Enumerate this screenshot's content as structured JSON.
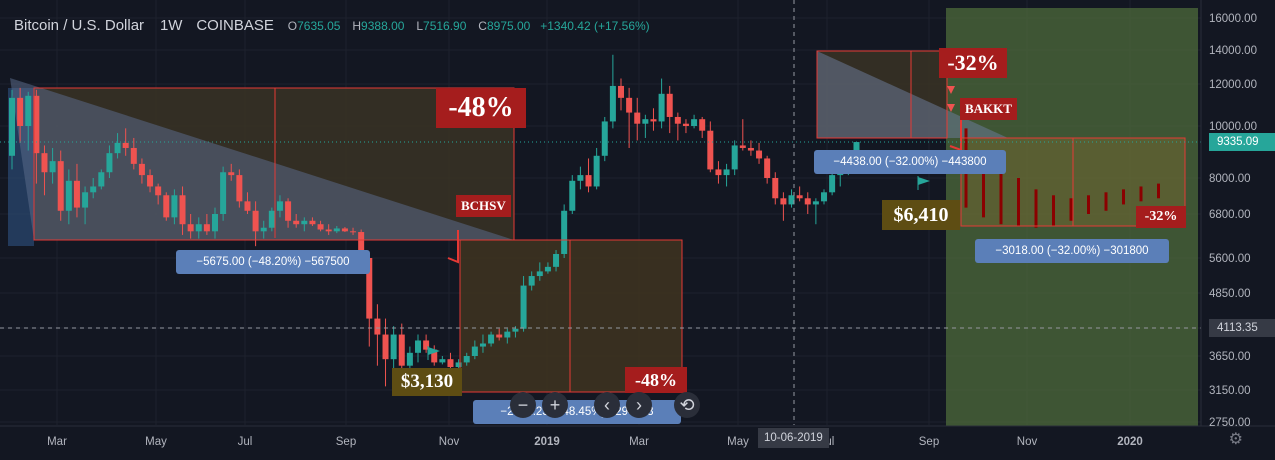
{
  "header": {
    "symbol": "Bitcoin / U.S. Dollar",
    "interval": "1W",
    "exchange": "COINBASE",
    "open": "7635.05",
    "high": "9388.00",
    "low": "7516.90",
    "close": "8975.00",
    "change": "+1340.42 (+17.56%)"
  },
  "chart_data": {
    "type": "candlestick",
    "x_ticks": [
      "Mar",
      "May",
      "Jul",
      "Sep",
      "Nov",
      "2019",
      "Mar",
      "May",
      "Jul",
      "Sep",
      "Nov",
      "2020"
    ],
    "y_ticks": [
      "16000.00",
      "14000.00",
      "12000.00",
      "10000.00",
      "8000.00",
      "6800.00",
      "5600.00",
      "4850.00",
      "4113.35",
      "3650.00",
      "3150.00",
      "2750.00"
    ],
    "y_ticks_values": [
      16000,
      14000,
      12000,
      10000,
      8000,
      6800,
      5600,
      4850,
      4113.35,
      3650,
      3150,
      2750
    ],
    "y_scale": "log",
    "current_price_label": "9335.09",
    "crosshair_price_label": "4113.35",
    "crosshair_date_label": "10-06-2019",
    "colors": {
      "up": "#26a69a",
      "down": "#ef5350",
      "forecast": "#8b0000"
    },
    "candles_2018": [
      [
        8800,
        11700,
        8300,
        11300
      ],
      [
        11300,
        11800,
        9300,
        10000
      ],
      [
        10000,
        11600,
        9000,
        11400
      ],
      [
        11400,
        11700,
        7800,
        8900
      ],
      [
        8900,
        9200,
        7400,
        8200
      ],
      [
        8200,
        9100,
        7800,
        8600
      ],
      [
        8600,
        9000,
        6600,
        6900
      ],
      [
        6900,
        8300,
        6500,
        7900
      ],
      [
        7900,
        8500,
        6700,
        7000
      ],
      [
        7000,
        7700,
        6500,
        7500
      ],
      [
        7500,
        8000,
        7300,
        7700
      ],
      [
        7700,
        8300,
        7600,
        8200
      ],
      [
        8200,
        9200,
        8000,
        8900
      ],
      [
        8900,
        9700,
        8700,
        9300
      ],
      [
        9300,
        9900,
        8800,
        9100
      ],
      [
        9100,
        9500,
        8300,
        8500
      ],
      [
        8500,
        8700,
        7800,
        8100
      ],
      [
        8100,
        8300,
        7500,
        7700
      ],
      [
        7700,
        7800,
        7100,
        7400
      ],
      [
        7400,
        7500,
        6600,
        6700
      ],
      [
        6700,
        7600,
        6500,
        7400
      ],
      [
        7400,
        7700,
        6200,
        6500
      ],
      [
        6500,
        6800,
        6100,
        6300
      ],
      [
        6300,
        6700,
        6100,
        6500
      ],
      [
        6500,
        6800,
        6200,
        6300
      ],
      [
        6300,
        7000,
        6100,
        6800
      ],
      [
        6800,
        8400,
        6600,
        8200
      ],
      [
        8200,
        8500,
        7900,
        8100
      ],
      [
        8100,
        8300,
        7000,
        7200
      ],
      [
        7200,
        7500,
        6800,
        6900
      ],
      [
        6900,
        7200,
        5900,
        6300
      ],
      [
        6300,
        6600,
        6100,
        6400
      ],
      [
        6400,
        7000,
        6300,
        6900
      ],
      [
        6900,
        7400,
        6700,
        7200
      ],
      [
        7200,
        7300,
        6400,
        6600
      ],
      [
        6600,
        6800,
        6400,
        6500
      ],
      [
        6500,
        6700,
        6300,
        6600
      ],
      [
        6600,
        6700,
        6450,
        6500
      ],
      [
        6500,
        6600,
        6300,
        6350
      ],
      [
        6350,
        6500,
        6200,
        6300
      ],
      [
        6300,
        6450,
        6250,
        6380
      ],
      [
        6380,
        6420,
        6280,
        6300
      ],
      [
        6300,
        6400,
        6200,
        6280
      ],
      [
        6280,
        6350,
        5500,
        5600
      ]
    ],
    "candles_2019": [
      [
        5600,
        5700,
        3800,
        4300
      ],
      [
        4300,
        4600,
        3500,
        4000
      ],
      [
        4000,
        4300,
        3200,
        3600
      ],
      [
        3600,
        4150,
        3400,
        4000
      ],
      [
        4000,
        4200,
        3250,
        3500
      ],
      [
        3500,
        3800,
        3400,
        3700
      ],
      [
        3700,
        4000,
        3550,
        3900
      ],
      [
        3900,
        4000,
        3700,
        3750
      ],
      [
        3750,
        3820,
        3500,
        3550
      ],
      [
        3550,
        3650,
        3520,
        3600
      ],
      [
        3600,
        3700,
        3450,
        3480
      ],
      [
        3480,
        3600,
        3400,
        3550
      ],
      [
        3550,
        3700,
        3500,
        3650
      ],
      [
        3650,
        3900,
        3600,
        3800
      ],
      [
        3800,
        4000,
        3700,
        3850
      ],
      [
        3850,
        4050,
        3800,
        4000
      ],
      [
        4000,
        4100,
        3900,
        3950
      ],
      [
        3950,
        4100,
        3850,
        4050
      ],
      [
        4050,
        4150,
        3950,
        4100
      ],
      [
        4100,
        5200,
        4050,
        5000
      ],
      [
        5000,
        5300,
        4900,
        5200
      ],
      [
        5200,
        5500,
        5100,
        5300
      ],
      [
        5300,
        5500,
        5250,
        5400
      ],
      [
        5400,
        5800,
        5300,
        5700
      ],
      [
        5700,
        7100,
        5600,
        6900
      ],
      [
        6900,
        8100,
        6800,
        7900
      ],
      [
        7900,
        8400,
        7600,
        8100
      ],
      [
        8100,
        8700,
        7500,
        7700
      ],
      [
        7700,
        9100,
        7600,
        8800
      ],
      [
        8800,
        10400,
        8600,
        10200
      ],
      [
        10200,
        13700,
        9900,
        11900
      ],
      [
        11900,
        12300,
        10700,
        11300
      ],
      [
        11300,
        11800,
        9100,
        10600
      ],
      [
        10600,
        11300,
        9400,
        10100
      ],
      [
        10100,
        10500,
        9500,
        10300
      ],
      [
        10300,
        10800,
        9800,
        10200
      ],
      [
        10200,
        12300,
        9900,
        11500
      ],
      [
        11500,
        11900,
        9700,
        10400
      ],
      [
        10400,
        10600,
        9400,
        10100
      ],
      [
        10100,
        10300,
        9700,
        10000
      ],
      [
        10000,
        10500,
        9900,
        10300
      ],
      [
        10300,
        10400,
        9500,
        9800
      ],
      [
        9800,
        10200,
        8200,
        8300
      ],
      [
        8300,
        8600,
        7800,
        8100
      ],
      [
        8100,
        8500,
        7700,
        8300
      ],
      [
        8300,
        9400,
        8100,
        9200
      ],
      [
        9200,
        10300,
        9000,
        9100
      ],
      [
        9100,
        9400,
        8800,
        9000
      ],
      [
        9000,
        9300,
        8500,
        8700
      ],
      [
        8700,
        8800,
        7800,
        8000
      ],
      [
        8000,
        8200,
        7100,
        7300
      ],
      [
        7300,
        7500,
        6600,
        7100
      ],
      [
        7100,
        7600,
        7000,
        7400
      ],
      [
        7400,
        7700,
        7200,
        7300
      ],
      [
        7300,
        7500,
        6800,
        7100
      ],
      [
        7100,
        7300,
        6500,
        7200
      ],
      [
        7200,
        7600,
        7100,
        7500
      ],
      [
        7500,
        8400,
        7400,
        8100
      ],
      [
        8100,
        8500,
        7700,
        8300
      ],
      [
        8300,
        9000,
        8100,
        8600
      ],
      [
        8600,
        9300,
        8500,
        9335
      ]
    ]
  },
  "annotations": {
    "drop1_percent": "-48%",
    "drop1_measure": "−5675.00 (−48.20%) −567500",
    "drop1_event": "BCHSV",
    "drop1_price": "$3,130",
    "drop2_percent": "-48%",
    "drop2_measure": "−2941.23 (−48.45%) −294123",
    "drop3_percent": "-32%",
    "drop3_measure": "−4438.00 (−32.00%) −443800",
    "drop3_event": "BAKKT",
    "drop3_price": "$6,410",
    "drop4_percent": "-32%",
    "drop4_measure": "−3018.00 (−32.00%) −301800"
  },
  "toolbar": {
    "zoom_out": "−",
    "zoom_in": "+",
    "scroll_left": "‹",
    "scroll_right": "›",
    "reset": "⟲"
  },
  "settings_icon": "gear-icon"
}
